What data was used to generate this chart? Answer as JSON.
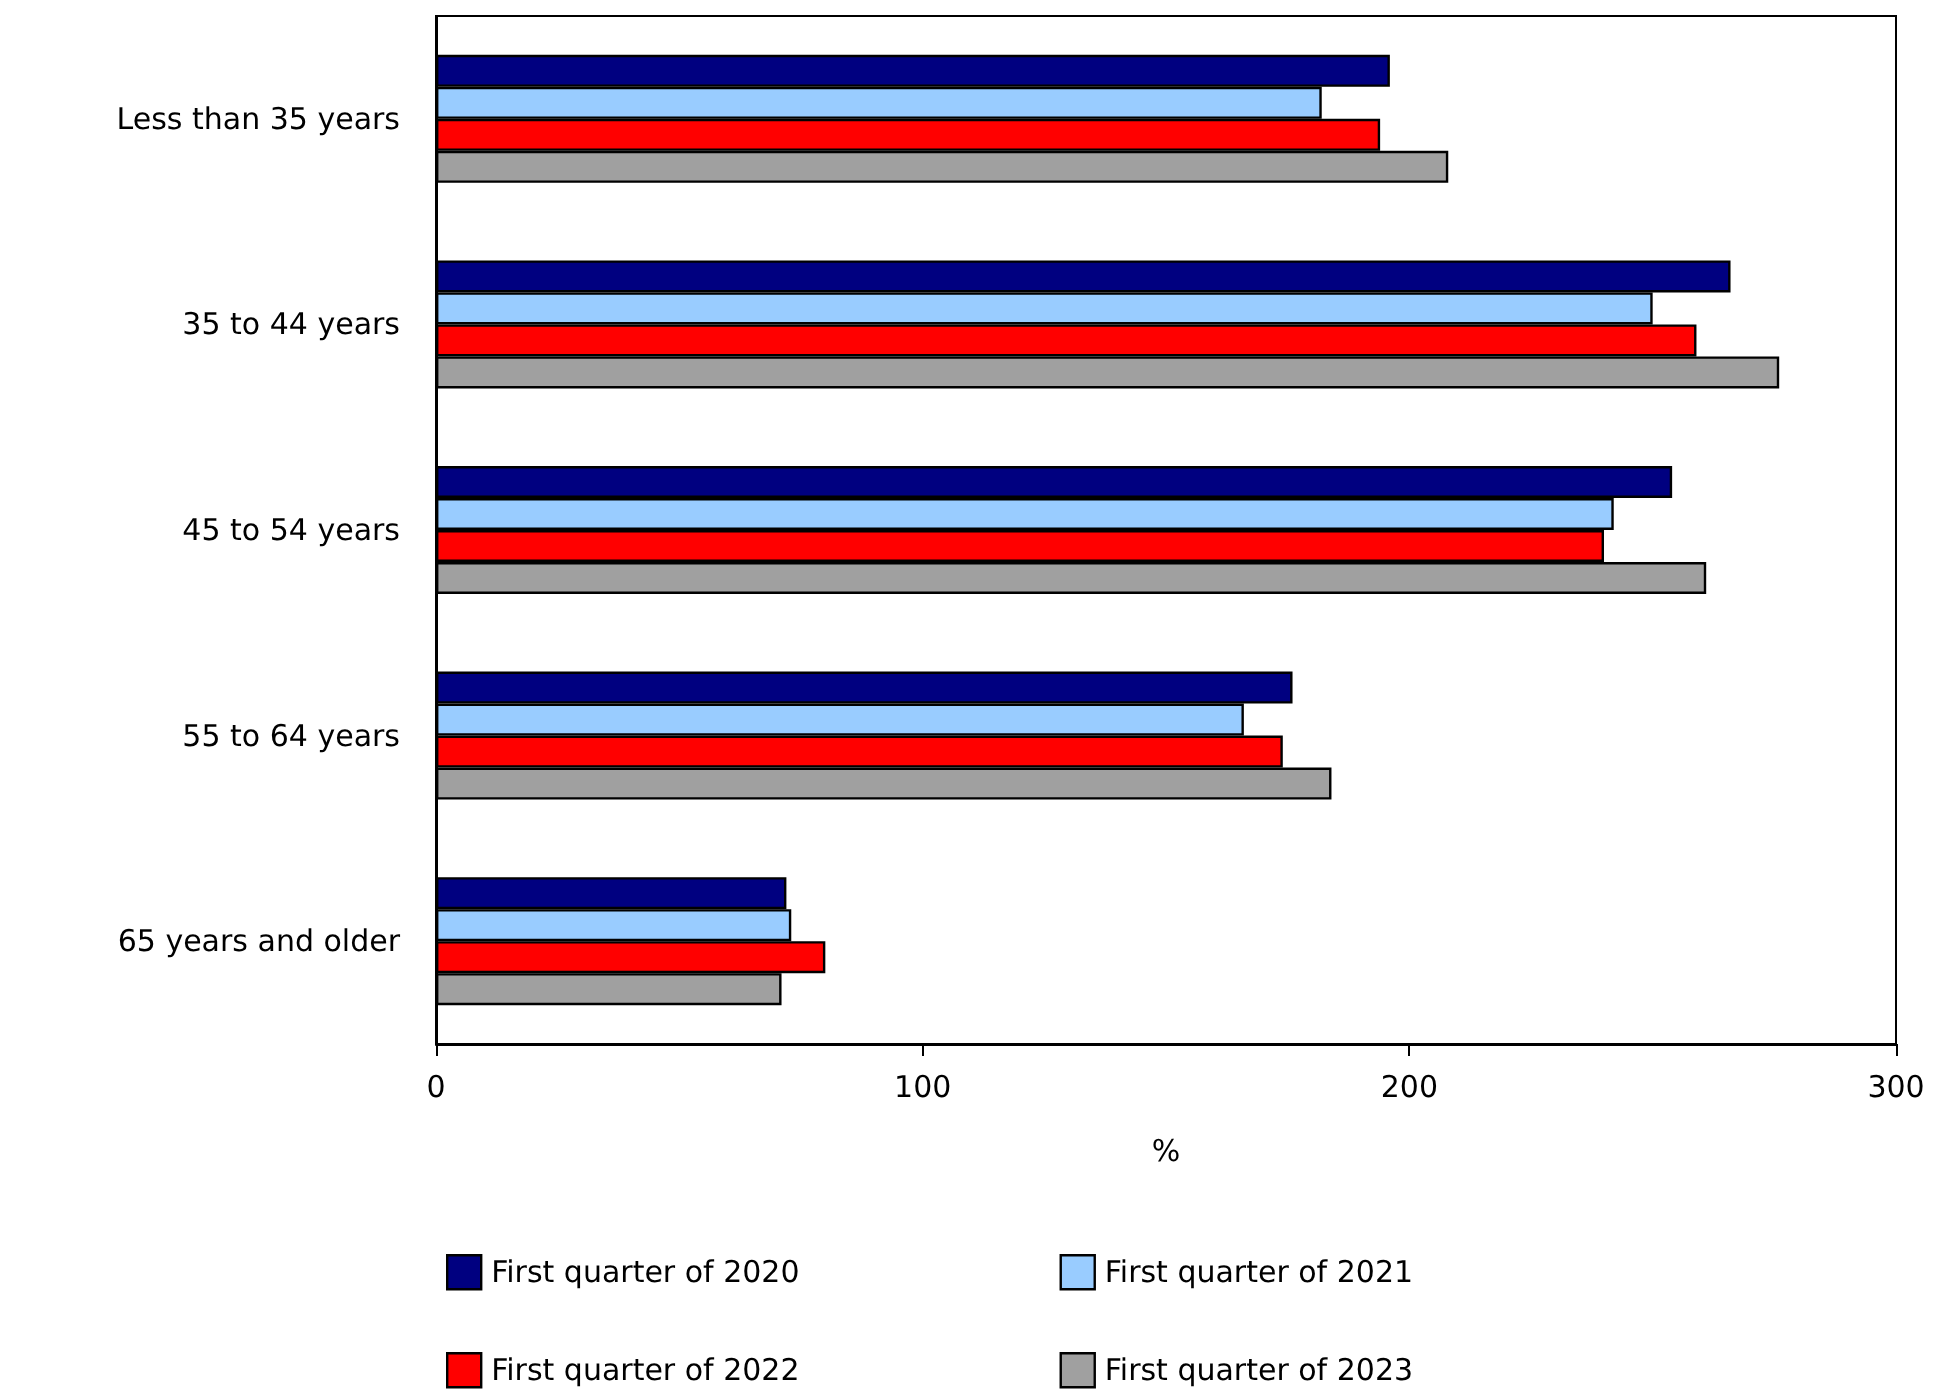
{
  "chart_data": {
    "type": "bar",
    "orientation": "horizontal",
    "xlabel": "%",
    "categories": [
      "Less than 35 years",
      "35 to 44 years",
      "45 to 54 years",
      "55 to 64 years",
      "65 years and older"
    ],
    "series": [
      {
        "name": "First quarter of 2020",
        "color": "#000080",
        "values": [
          196,
          266,
          254,
          176,
          72
        ]
      },
      {
        "name": "First quarter of 2021",
        "color": "#99ccff",
        "values": [
          182,
          250,
          242,
          166,
          73
        ]
      },
      {
        "name": "First quarter of 2022",
        "color": "#ff0000",
        "values": [
          194,
          259,
          240,
          174,
          80
        ]
      },
      {
        "name": "First quarter of 2023",
        "color": "#a0a0a0",
        "values": [
          208,
          276,
          261,
          184,
          71
        ]
      }
    ],
    "xlim": [
      0,
      300
    ],
    "xticks": [
      0,
      100,
      200,
      300
    ],
    "grid": false,
    "legend": "bottom"
  }
}
